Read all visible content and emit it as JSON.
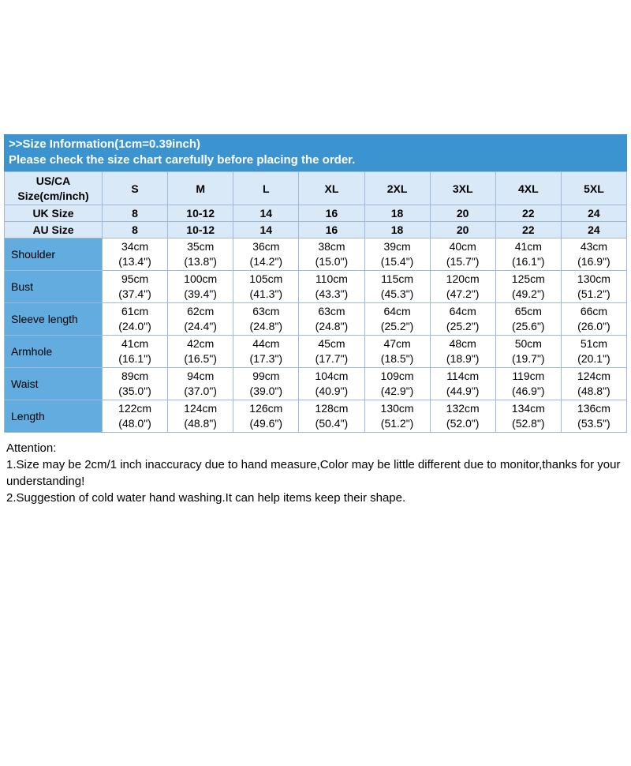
{
  "banner": {
    "line1": ">>Size Information(1cm=0.39inch)",
    "line2": "Please check the size chart carefully before placing the order."
  },
  "table": {
    "corner_label": "US/CA\nSize(cm/inch)",
    "sizes": [
      "S",
      "M",
      "L",
      "XL",
      "2XL",
      "3XL",
      "4XL",
      "5XL"
    ],
    "uk": {
      "label": "UK Size",
      "cells": [
        "8",
        "10-12",
        "14",
        "16",
        "18",
        "20",
        "22",
        "24"
      ]
    },
    "au": {
      "label": "AU Size",
      "cells": [
        "8",
        "10-12",
        "14",
        "16",
        "18",
        "20",
        "22",
        "24"
      ]
    },
    "measurements": [
      {
        "label": "Shoulder",
        "cells": [
          "34cm\n(13.4\")",
          "35cm\n(13.8\")",
          "36cm\n(14.2\")",
          "38cm\n(15.0\")",
          "39cm\n(15.4\")",
          "40cm\n(15.7\")",
          "41cm\n(16.1\")",
          "43cm\n(16.9\")"
        ]
      },
      {
        "label": "Bust",
        "cells": [
          "95cm\n(37.4\")",
          "100cm\n(39.4\")",
          "105cm\n(41.3\")",
          "110cm\n(43.3\")",
          "115cm\n(45.3\")",
          "120cm\n(47.2\")",
          "125cm\n(49.2\")",
          "130cm\n(51.2\")"
        ]
      },
      {
        "label": "Sleeve length",
        "cells": [
          "61cm\n(24.0\")",
          "62cm\n(24.4\")",
          "63cm\n(24.8\")",
          "63cm\n(24.8\")",
          "64cm\n(25.2\")",
          "64cm\n(25.2\")",
          "65cm\n(25.6\")",
          "66cm\n(26.0\")"
        ]
      },
      {
        "label": "Armhole",
        "cells": [
          "41cm\n(16.1\")",
          "42cm\n(16.5\")",
          "44cm\n(17.3\")",
          "45cm\n(17.7\")",
          "47cm\n(18.5\")",
          "48cm\n(18.9\")",
          "50cm\n(19.7\")",
          "51cm\n(20.1\")"
        ]
      },
      {
        "label": "Waist",
        "cells": [
          "89cm\n(35.0\")",
          "94cm\n(37.0\")",
          "99cm\n(39.0\")",
          "104cm\n(40.9\")",
          "109cm\n(42.9\")",
          "114cm\n(44.9\")",
          "119cm\n(46.9\")",
          "124cm\n(48.8\")"
        ]
      },
      {
        "label": "Length",
        "cells": [
          "122cm\n(48.0\")",
          "124cm\n(48.8\")",
          "126cm\n(49.6\")",
          "128cm\n(50.4\")",
          "130cm\n(51.2\")",
          "132cm\n(52.0\")",
          "134cm\n(52.8\")",
          "136cm\n(53.5\")"
        ]
      }
    ]
  },
  "attention": {
    "title": "Attention:",
    "note1": "1.Size may be 2cm/1 inch inaccuracy due to hand measure,Color may be little different due to monitor,thanks for your understanding!",
    "note2": "2.Suggestion of cold water hand washing.It can help items keep their shape."
  },
  "colors": {
    "banner_blue": "#3b93d0",
    "label_column_blue": "#62ace0",
    "header_light_blue": "#d9e9f8",
    "border": "#9db9d6"
  }
}
